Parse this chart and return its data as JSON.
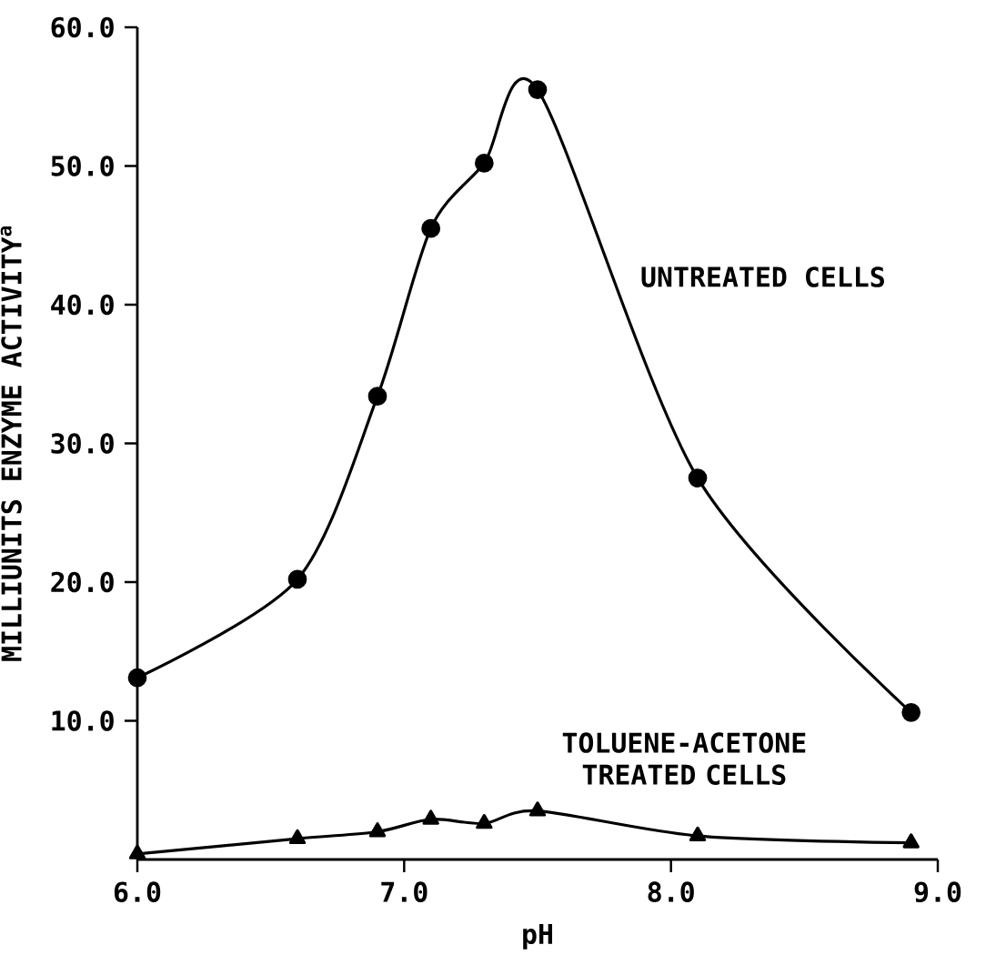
{
  "chart_data": {
    "type": "line",
    "xlabel": "pH",
    "ylabel": "MILLIUNITS ENZYME ACTIVITY$^{a}$",
    "x": [
      6.0,
      6.6,
      6.9,
      7.1,
      7.3,
      7.5,
      8.1,
      8.9
    ],
    "series": [
      {
        "name": "UNTREATED CELLS",
        "color": "#000000",
        "marker": "circle",
        "values": [
          13.1,
          20.2,
          33.4,
          45.5,
          50.2,
          55.5,
          27.5,
          10.6
        ]
      },
      {
        "name": "TOLUENE-ACETONE TREATED CELLS",
        "color": "#000000",
        "marker": "triangle",
        "values": [
          0.4,
          1.5,
          2.0,
          2.9,
          2.6,
          3.5,
          1.7,
          1.2
        ]
      }
    ],
    "xlim": [
      6,
      9
    ],
    "ylim": [
      0,
      60
    ],
    "xticks": [
      {
        "value": 6,
        "label": "6.0"
      },
      {
        "value": 7,
        "label": "7.0"
      },
      {
        "value": 8,
        "label": "8.0"
      },
      {
        "value": 9,
        "label": "9.0"
      }
    ],
    "yticks": [
      {
        "value": 10,
        "label": "10.0"
      },
      {
        "value": 20,
        "label": "20.0"
      },
      {
        "value": 30,
        "label": "30.0"
      },
      {
        "value": 40,
        "label": "40.0"
      },
      {
        "value": 50,
        "label": "50.0"
      },
      {
        "value": 60,
        "label": "60.0"
      }
    ],
    "line_style": "solid"
  }
}
